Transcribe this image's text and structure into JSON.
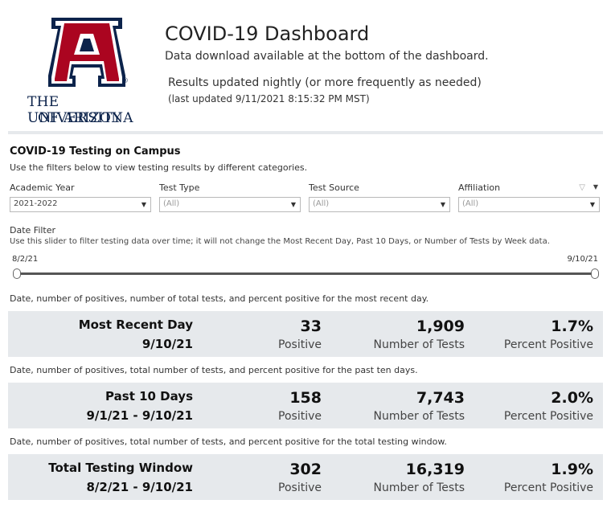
{
  "header": {
    "logo_line1": "THE UNIVERSITY",
    "logo_line2": "OF ARIZONA",
    "logo_letter": "A",
    "logo_mark": "®",
    "title": "COVID-19 Dashboard",
    "subtitle": "Data download available at the bottom of the dashboard.",
    "updated": "Results updated nightly (or more frequently as needed)",
    "last_updated": "(last updated 9/11/2021 8:15:32 PM MST)"
  },
  "testing": {
    "title": "COVID-19 Testing on Campus",
    "subtitle": "Use the filters below to view testing results by different categories.",
    "filters": [
      {
        "label": "Academic Year",
        "value": "2021-2022"
      },
      {
        "label": "Test Type",
        "value": "(All)"
      },
      {
        "label": "Test Source",
        "value": "(All)"
      },
      {
        "label": "Affiliation",
        "value": "(All)"
      }
    ],
    "date_filter": {
      "label": "Date Filter",
      "description": "Use this slider to filter testing data over time; it will not change the Most Recent Day, Past 10 Days, or Number of Tests by Week data.",
      "start": "8/2/21",
      "end": "9/10/21"
    }
  },
  "summaries": [
    {
      "description": "Date, number of positives, number of total tests, and percent positive for the most recent day.",
      "period": "Most Recent Day",
      "range": "9/10/21",
      "positives": "33",
      "positives_label": "Positive",
      "tests": "1,909",
      "tests_label": "Number of Tests",
      "percent": "1.7%",
      "percent_label": "Percent Positive"
    },
    {
      "description": "Date, number of positives, total number of tests, and percent positive for the past ten days.",
      "period": "Past 10 Days",
      "range": "9/1/21 - 9/10/21",
      "positives": "158",
      "positives_label": "Positive",
      "tests": "7,743",
      "tests_label": "Number of Tests",
      "percent": "2.0%",
      "percent_label": "Percent Positive"
    },
    {
      "description": "Date, number of positives, total number of tests, and percent positive for the total testing window.",
      "period": "Total Testing Window",
      "range": "8/2/21 - 9/10/21",
      "positives": "302",
      "positives_label": "Positive",
      "tests": "16,319",
      "tests_label": "Number of Tests",
      "percent": "1.9%",
      "percent_label": "Percent Positive"
    }
  ],
  "colors": {
    "brand_red": "#ab0520",
    "brand_navy": "#0c234b",
    "band_bg": "#e6e9ec"
  },
  "icons": {
    "filter": "funnel-icon",
    "menu": "triangle-down-icon",
    "dropdown": "dropdown-arrow-icon"
  }
}
